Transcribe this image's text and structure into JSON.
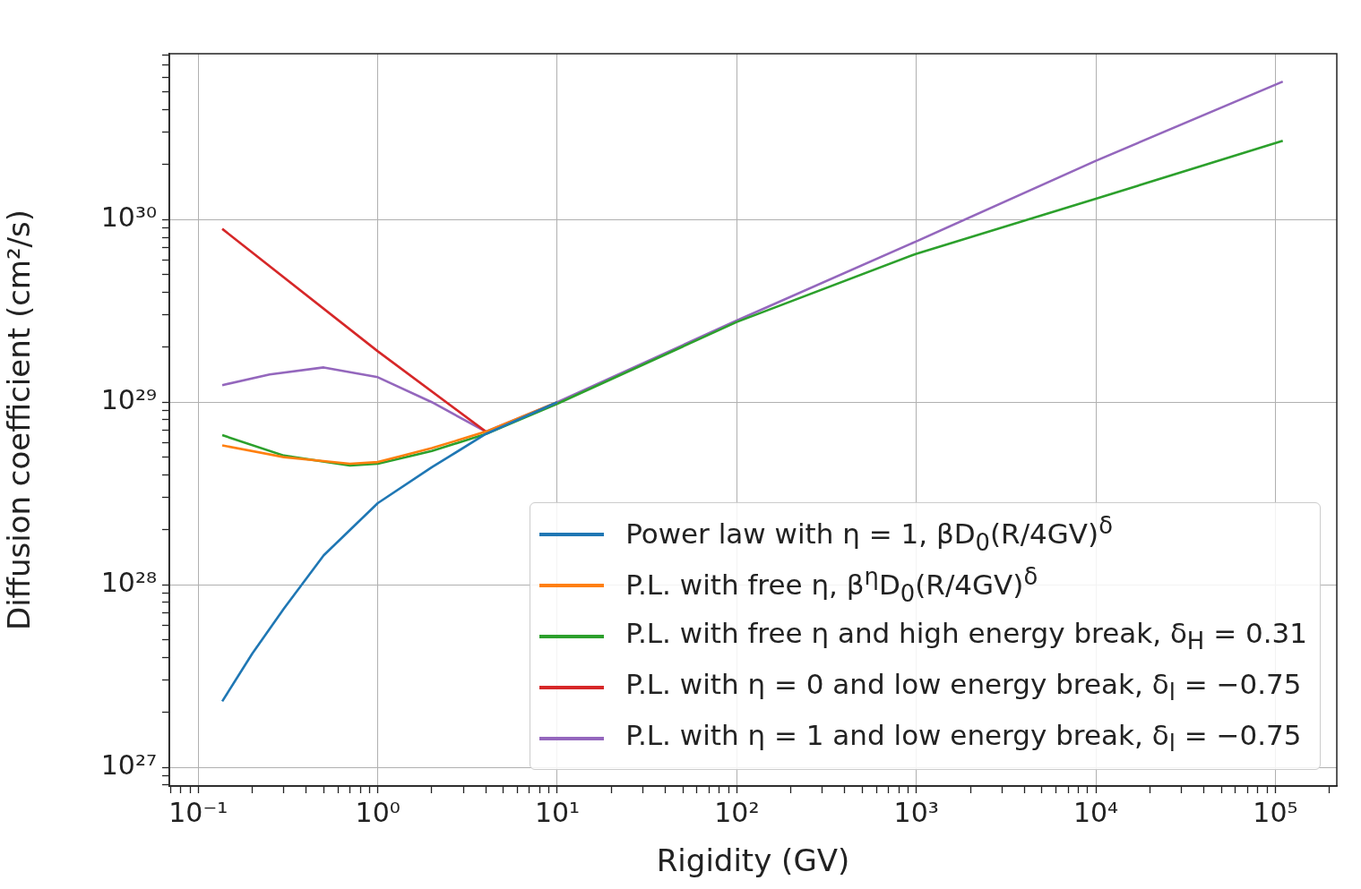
{
  "chart_data": {
    "type": "line",
    "xlabel": "Rigidity (GV)",
    "ylabel": "Diffusion coefficient (cm²/s)",
    "log": "xy",
    "grid": true,
    "legend": "bottom right",
    "marker": "none",
    "line_style": "solid",
    "xlim": [
      0.069,
      220000
    ],
    "ylim": [
      7.9e+26,
      8.1e+30
    ],
    "xticks": [
      {
        "value": 0.07,
        "label": null
      },
      {
        "value": 0.08,
        "label": null
      },
      {
        "value": 0.09,
        "label": null
      },
      {
        "value": 0.1,
        "label": "10⁻¹"
      },
      {
        "value": 0.2,
        "label": null
      },
      {
        "value": 0.3,
        "label": null
      },
      {
        "value": 0.4,
        "label": null
      },
      {
        "value": 0.5,
        "label": null
      },
      {
        "value": 0.6,
        "label": null
      },
      {
        "value": 0.7,
        "label": null
      },
      {
        "value": 0.8,
        "label": null
      },
      {
        "value": 0.9,
        "label": null
      },
      {
        "value": 1,
        "label": "10⁰"
      },
      {
        "value": 2,
        "label": null
      },
      {
        "value": 3,
        "label": null
      },
      {
        "value": 4,
        "label": null
      },
      {
        "value": 5,
        "label": null
      },
      {
        "value": 6,
        "label": null
      },
      {
        "value": 7,
        "label": null
      },
      {
        "value": 8,
        "label": null
      },
      {
        "value": 9,
        "label": null
      },
      {
        "value": 10,
        "label": "10¹"
      },
      {
        "value": 20,
        "label": null
      },
      {
        "value": 30,
        "label": null
      },
      {
        "value": 40,
        "label": null
      },
      {
        "value": 50,
        "label": null
      },
      {
        "value": 60,
        "label": null
      },
      {
        "value": 70,
        "label": null
      },
      {
        "value": 80,
        "label": null
      },
      {
        "value": 90,
        "label": null
      },
      {
        "value": 100,
        "label": "10²"
      },
      {
        "value": 200,
        "label": null
      },
      {
        "value": 300,
        "label": null
      },
      {
        "value": 400,
        "label": null
      },
      {
        "value": 500,
        "label": null
      },
      {
        "value": 600,
        "label": null
      },
      {
        "value": 700,
        "label": null
      },
      {
        "value": 800,
        "label": null
      },
      {
        "value": 900,
        "label": null
      },
      {
        "value": 1000,
        "label": "10³"
      },
      {
        "value": 2000,
        "label": null
      },
      {
        "value": 3000,
        "label": null
      },
      {
        "value": 4000,
        "label": null
      },
      {
        "value": 5000,
        "label": null
      },
      {
        "value": 6000,
        "label": null
      },
      {
        "value": 7000,
        "label": null
      },
      {
        "value": 8000,
        "label": null
      },
      {
        "value": 9000,
        "label": null
      },
      {
        "value": 10000,
        "label": "10⁴"
      },
      {
        "value": 20000,
        "label": null
      },
      {
        "value": 30000,
        "label": null
      },
      {
        "value": 40000,
        "label": null
      },
      {
        "value": 50000,
        "label": null
      },
      {
        "value": 60000,
        "label": null
      },
      {
        "value": 70000,
        "label": null
      },
      {
        "value": 80000,
        "label": null
      },
      {
        "value": 90000,
        "label": null
      },
      {
        "value": 100000,
        "label": "10⁵"
      },
      {
        "value": 200000,
        "label": null
      }
    ],
    "yticks": [
      {
        "value": 8e+26,
        "label": null
      },
      {
        "value": 9e+26,
        "label": null
      },
      {
        "value": 1e+27,
        "label": "10²⁷"
      },
      {
        "value": 2e+27,
        "label": null
      },
      {
        "value": 3e+27,
        "label": null
      },
      {
        "value": 4e+27,
        "label": null
      },
      {
        "value": 5e+27,
        "label": null
      },
      {
        "value": 6e+27,
        "label": null
      },
      {
        "value": 7e+27,
        "label": null
      },
      {
        "value": 8e+27,
        "label": null
      },
      {
        "value": 9e+27,
        "label": null
      },
      {
        "value": 1e+28,
        "label": "10²⁸"
      },
      {
        "value": 2e+28,
        "label": null
      },
      {
        "value": 3e+28,
        "label": null
      },
      {
        "value": 4e+28,
        "label": null
      },
      {
        "value": 5e+28,
        "label": null
      },
      {
        "value": 6e+28,
        "label": null
      },
      {
        "value": 7e+28,
        "label": null
      },
      {
        "value": 8e+28,
        "label": null
      },
      {
        "value": 9e+28,
        "label": null
      },
      {
        "value": 1e+29,
        "label": "10²⁹"
      },
      {
        "value": 2e+29,
        "label": null
      },
      {
        "value": 3e+29,
        "label": null
      },
      {
        "value": 4e+29,
        "label": null
      },
      {
        "value": 5e+29,
        "label": null
      },
      {
        "value": 6e+29,
        "label": null
      },
      {
        "value": 7e+29,
        "label": null
      },
      {
        "value": 8e+29,
        "label": null
      },
      {
        "value": 9e+29,
        "label": null
      },
      {
        "value": 1e+30,
        "label": "10³⁰"
      },
      {
        "value": 2e+30,
        "label": null
      },
      {
        "value": 3e+30,
        "label": null
      },
      {
        "value": 4e+30,
        "label": null
      },
      {
        "value": 5e+30,
        "label": null
      },
      {
        "value": 6e+30,
        "label": null
      },
      {
        "value": 7e+30,
        "label": null
      },
      {
        "value": 8e+30,
        "label": null
      }
    ],
    "series": [
      {
        "name": "Power law with η = 1, βD$_{0}$(R/4GV)$^{δ}$",
        "color": "#1f77b4",
        "x": [
          0.136,
          0.2,
          0.3,
          0.5,
          1,
          2,
          4,
          10
        ],
        "values": [
          2.3e+27,
          4.2e+27,
          7.4e+27,
          1.45e+28,
          2.8e+28,
          4.4e+28,
          6.7e+28,
          1e+29
        ]
      },
      {
        "name": "P.L. with free η, β$^{η}$D$_{0}$(R/4GV)$^{δ}$",
        "color": "#ff7f0e",
        "x": [
          0.136,
          0.3,
          0.7,
          1,
          2,
          4,
          10
        ],
        "values": [
          5.8e+28,
          5e+28,
          4.6e+28,
          4.7e+28,
          5.6e+28,
          6.9e+28,
          1e+29
        ]
      },
      {
        "name": "P.L. with free η and high energy break, δ$_{H}$ = 0.31",
        "color": "#2ca02c",
        "x": [
          0.136,
          0.3,
          0.7,
          1,
          2,
          4,
          10,
          100,
          1000,
          10000,
          110000
        ],
        "values": [
          6.6e+28,
          5.1e+28,
          4.5e+28,
          4.6e+28,
          5.4e+28,
          6.7e+28,
          9.8e+28,
          2.75e+29,
          6.5e+29,
          1.3e+30,
          2.7e+30
        ]
      },
      {
        "name": "P.L. with η = 0 and low energy break, δ$_{l}$ = −0.75",
        "color": "#d62728",
        "x": [
          0.136,
          1,
          4
        ],
        "values": [
          8.9e+29,
          1.9e+29,
          6.9e+28
        ]
      },
      {
        "name": "P.L. with η = 1 and low energy break, δ$_{l}$ = −0.75",
        "color": "#9467bd",
        "x": [
          0.136,
          0.25,
          0.5,
          1,
          2,
          4,
          10,
          100,
          1000,
          10000,
          110000
        ],
        "values": [
          1.24e+29,
          1.42e+29,
          1.55e+29,
          1.37e+29,
          1e+29,
          6.9e+28,
          1e+29,
          2.8e+29,
          7.6e+29,
          2.1e+30,
          5.7e+30
        ]
      }
    ]
  }
}
